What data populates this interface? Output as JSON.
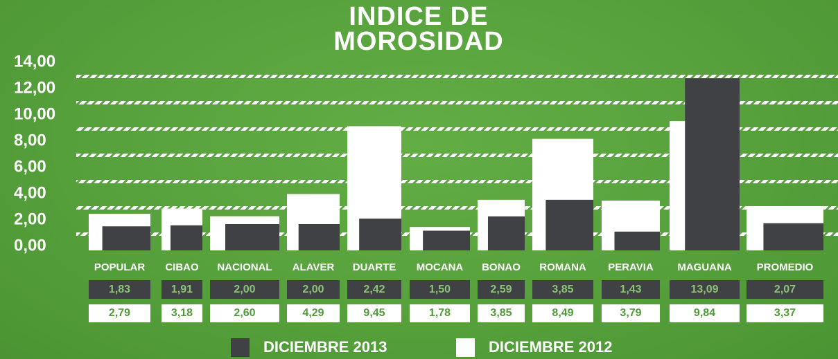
{
  "chart_data": {
    "type": "bar",
    "title": "INDICE DE MOROSIDAD",
    "categories": [
      "POPULAR",
      "CIBAO",
      "NACIONAL",
      "ALAVER",
      "DUARTE",
      "MOCANA",
      "BONAO",
      "ROMANA",
      "PERAVIA",
      "MAGUANA",
      "PROMEDIO"
    ],
    "series": [
      {
        "name": "DICIEMBRE 2013",
        "color": "#404144",
        "values": [
          1.83,
          1.91,
          2.0,
          2.0,
          2.42,
          1.5,
          2.59,
          3.85,
          1.43,
          13.09,
          2.07
        ],
        "value_labels": [
          "1,83",
          "1,91",
          "2,00",
          "2,00",
          "2,42",
          "1,50",
          "2,59",
          "3,85",
          "1,43",
          "13,09",
          "2,07"
        ]
      },
      {
        "name": "DICIEMBRE 2012",
        "color": "#ffffff",
        "values": [
          2.79,
          3.18,
          2.6,
          4.29,
          9.45,
          1.78,
          3.85,
          8.49,
          3.79,
          9.84,
          3.37
        ],
        "value_labels": [
          "2,79",
          "3,18",
          "2,60",
          "4,29",
          "9,45",
          "1,78",
          "3,85",
          "8,49",
          "3,79",
          "9,84",
          "3,37"
        ]
      }
    ],
    "ylim": [
      0,
      14
    ],
    "yticks": [
      {
        "value": 0,
        "label": "0,00"
      },
      {
        "value": 2,
        "label": "2,00"
      },
      {
        "value": 4,
        "label": "4,00"
      },
      {
        "value": 6,
        "label": "6,00"
      },
      {
        "value": 8,
        "label": "8,00"
      },
      {
        "value": 10,
        "label": "10,00"
      },
      {
        "value": 12,
        "label": "12,00"
      },
      {
        "value": 14,
        "label": "14,00"
      }
    ],
    "grid": true
  }
}
